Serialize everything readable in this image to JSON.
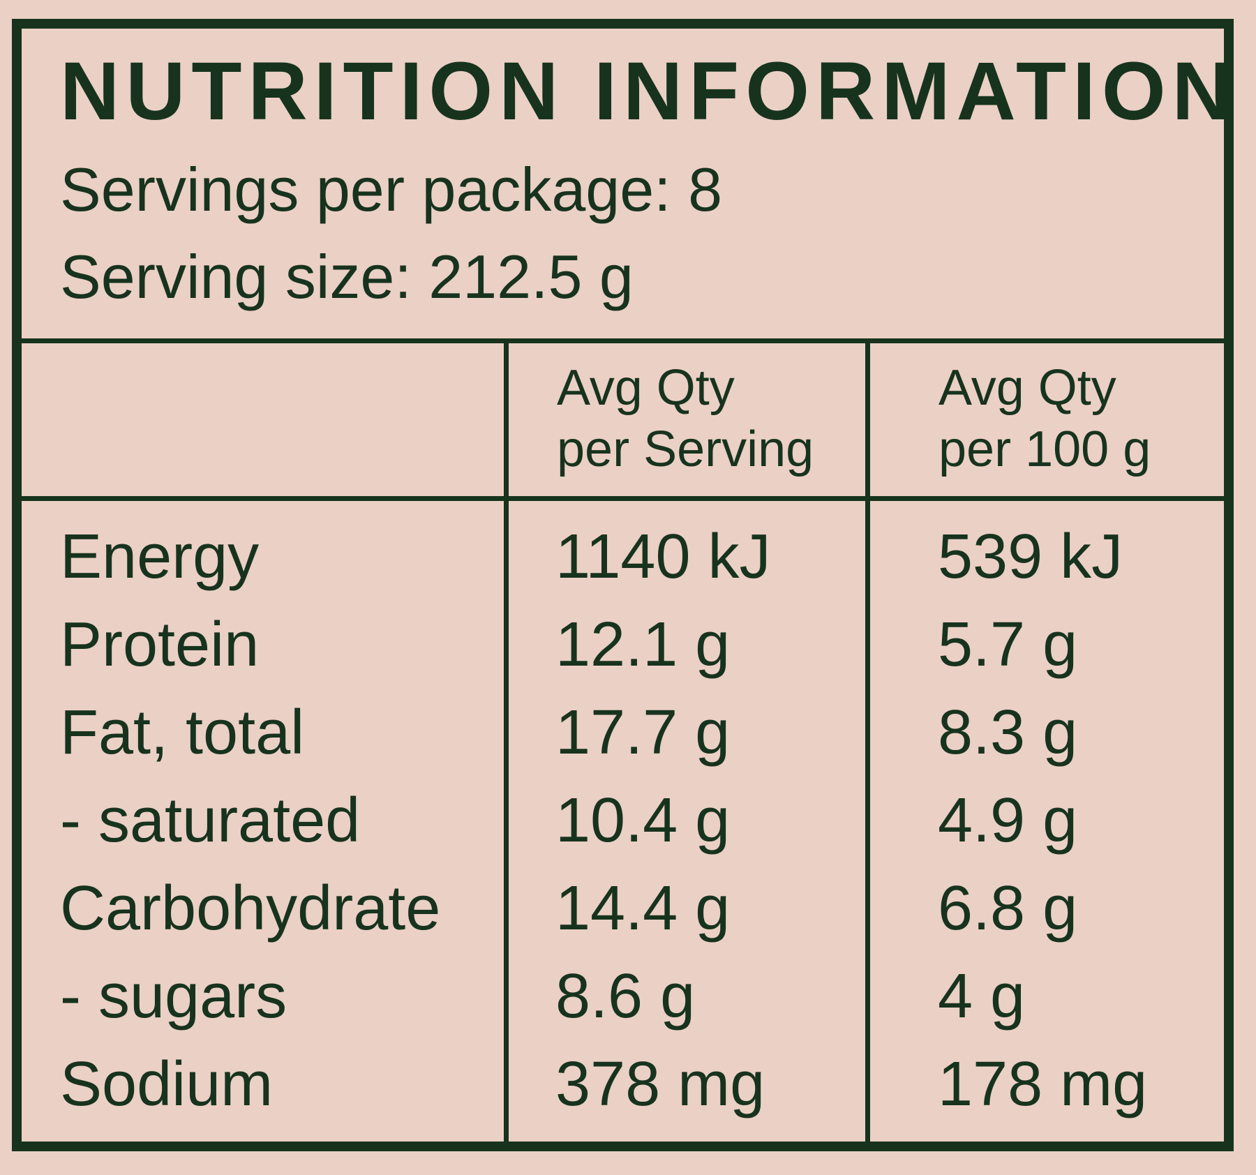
{
  "title": "NUTRITION INFORMATION",
  "servings_per_package": "Servings per package: 8",
  "serving_size": "Serving size: 212.5 g",
  "columns": [
    {
      "line1": "Avg Qty",
      "line2": "per Serving"
    },
    {
      "line1": "Avg Qty",
      "line2": "per 100 g"
    }
  ],
  "rows": [
    {
      "label": "Energy",
      "per_serving": "1140 kJ",
      "per_100g": "539 kJ"
    },
    {
      "label": "Protein",
      "per_serving": "12.1 g",
      "per_100g": "5.7 g"
    },
    {
      "label": "Fat, total",
      "per_serving": "17.7 g",
      "per_100g": "8.3 g"
    },
    {
      "label": "- saturated",
      "per_serving": "10.4 g",
      "per_100g": "4.9 g"
    },
    {
      "label": "Carbohydrate",
      "per_serving": "14.4 g",
      "per_100g": "6.8 g"
    },
    {
      "label": "- sugars",
      "per_serving": "8.6 g",
      "per_100g": "4 g"
    },
    {
      "label": "Sodium",
      "per_serving": "378 mg",
      "per_100g": "178 mg"
    }
  ],
  "colors": {
    "background": "#ebd0c5",
    "ink": "#17331d"
  }
}
